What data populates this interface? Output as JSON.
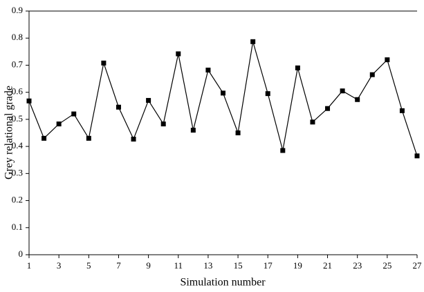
{
  "chart_data": {
    "type": "line",
    "xlabel": "Simulation number",
    "ylabel": "Grey relational grade",
    "x": [
      1,
      2,
      3,
      4,
      5,
      6,
      7,
      8,
      9,
      10,
      11,
      12,
      13,
      14,
      15,
      16,
      17,
      18,
      19,
      20,
      21,
      22,
      23,
      24,
      25,
      26,
      27
    ],
    "values": [
      0.568,
      0.43,
      0.483,
      0.52,
      0.43,
      0.708,
      0.545,
      0.427,
      0.57,
      0.483,
      0.742,
      0.46,
      0.682,
      0.597,
      0.45,
      0.787,
      0.595,
      0.385,
      0.69,
      0.49,
      0.54,
      0.605,
      0.573,
      0.665,
      0.72,
      0.532,
      0.365
    ],
    "color": "#000000",
    "xlim": [
      1,
      27
    ],
    "xticks": [
      1,
      3,
      5,
      7,
      9,
      11,
      13,
      15,
      17,
      19,
      21,
      23,
      25,
      27
    ],
    "ylim": [
      0,
      0.9
    ],
    "yticks": [
      0,
      0.1,
      0.2,
      0.3,
      0.4,
      0.5,
      0.6,
      0.7,
      0.8,
      0.9
    ],
    "grid": false
  }
}
